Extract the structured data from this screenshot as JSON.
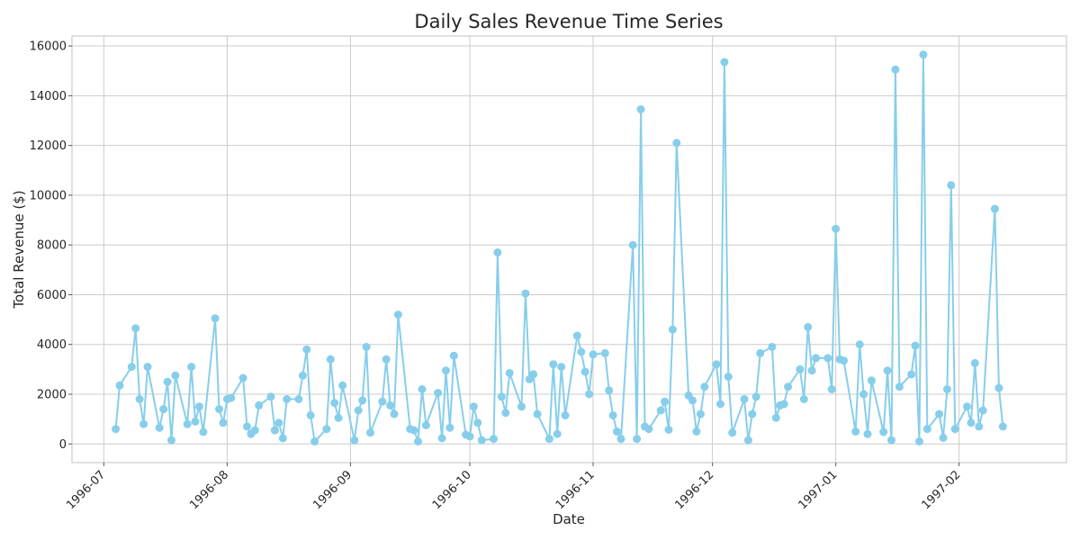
{
  "chart_data": {
    "type": "line",
    "title": "Daily Sales Revenue Time Series",
    "xlabel": "Date",
    "ylabel": "Total Revenue ($)",
    "x_tick_labels": [
      "1996-07",
      "1996-08",
      "1996-09",
      "1996-10",
      "1996-11",
      "1996-12",
      "1997-01",
      "1997-02"
    ],
    "y_tick_labels": [
      "0",
      "2000",
      "4000",
      "6000",
      "8000",
      "10000",
      "12000",
      "14000",
      "16000"
    ],
    "y_ticks": [
      0,
      2000,
      4000,
      6000,
      8000,
      10000,
      12000,
      14000,
      16000
    ],
    "xlim": [
      "1996-06-23",
      "1997-02-28"
    ],
    "ylim": [
      -750,
      16400
    ],
    "grid": true,
    "legend": "none",
    "series_color": "#87ceeb",
    "series": [
      {
        "x": [
          "1996-07-04",
          "1996-07-05",
          "1996-07-08",
          "1996-07-09",
          "1996-07-10",
          "1996-07-11",
          "1996-07-12",
          "1996-07-15",
          "1996-07-16",
          "1996-07-17",
          "1996-07-18",
          "1996-07-19",
          "1996-07-22",
          "1996-07-23",
          "1996-07-24",
          "1996-07-25",
          "1996-07-26",
          "1996-07-29",
          "1996-07-30",
          "1996-07-31",
          "1996-08-01",
          "1996-08-02",
          "1996-08-05",
          "1996-08-06",
          "1996-08-07",
          "1996-08-08",
          "1996-08-09",
          "1996-08-12",
          "1996-08-13",
          "1996-08-14",
          "1996-08-15",
          "1996-08-16",
          "1996-08-19",
          "1996-08-20",
          "1996-08-21",
          "1996-08-22",
          "1996-08-23",
          "1996-08-26",
          "1996-08-27",
          "1996-08-28",
          "1996-08-29",
          "1996-08-30",
          "1996-09-02",
          "1996-09-03",
          "1996-09-04",
          "1996-09-05",
          "1996-09-06",
          "1996-09-09",
          "1996-09-10",
          "1996-09-11",
          "1996-09-12",
          "1996-09-13",
          "1996-09-16",
          "1996-09-17",
          "1996-09-18",
          "1996-09-19",
          "1996-09-20",
          "1996-09-23",
          "1996-09-24",
          "1996-09-25",
          "1996-09-26",
          "1996-09-27",
          "1996-09-30",
          "1996-10-01",
          "1996-10-02",
          "1996-10-03",
          "1996-10-04",
          "1996-10-07",
          "1996-10-08",
          "1996-10-09",
          "1996-10-10",
          "1996-10-11",
          "1996-10-14",
          "1996-10-15",
          "1996-10-16",
          "1996-10-17",
          "1996-10-18",
          "1996-10-21",
          "1996-10-22",
          "1996-10-23",
          "1996-10-24",
          "1996-10-25",
          "1996-10-28",
          "1996-10-29",
          "1996-10-30",
          "1996-10-31",
          "1996-11-01",
          "1996-11-04",
          "1996-11-05",
          "1996-11-06",
          "1996-11-07",
          "1996-11-08",
          "1996-11-11",
          "1996-11-12",
          "1996-11-13",
          "1996-11-14",
          "1996-11-15",
          "1996-11-18",
          "1996-11-19",
          "1996-11-20",
          "1996-11-21",
          "1996-11-22",
          "1996-11-25",
          "1996-11-26",
          "1996-11-27",
          "1996-11-28",
          "1996-11-29",
          "1996-12-02",
          "1996-12-03",
          "1996-12-04",
          "1996-12-05",
          "1996-12-06",
          "1996-12-09",
          "1996-12-10",
          "1996-12-11",
          "1996-12-12",
          "1996-12-13",
          "1996-12-16",
          "1996-12-17",
          "1996-12-18",
          "1996-12-19",
          "1996-12-20",
          "1996-12-23",
          "1996-12-24",
          "1996-12-25",
          "1996-12-26",
          "1996-12-27",
          "1996-12-30",
          "1996-12-31",
          "1997-01-01",
          "1997-01-02",
          "1997-01-03",
          "1997-01-06",
          "1997-01-07",
          "1997-01-08",
          "1997-01-09",
          "1997-01-10",
          "1997-01-13",
          "1997-01-14",
          "1997-01-15",
          "1997-01-16",
          "1997-01-17",
          "1997-01-20",
          "1997-01-21",
          "1997-01-22",
          "1997-01-23",
          "1997-01-24",
          "1997-01-27",
          "1997-01-28",
          "1997-01-29",
          "1997-01-30",
          "1997-01-31",
          "1997-02-03",
          "1997-02-04",
          "1997-02-05",
          "1997-02-06",
          "1997-02-07",
          "1997-02-10",
          "1997-02-11",
          "1997-02-12"
        ],
        "y": [
          600,
          2350,
          3100,
          4650,
          1800,
          800,
          3100,
          650,
          1400,
          2500,
          150,
          2750,
          800,
          3100,
          900,
          1500,
          480,
          5050,
          1400,
          850,
          1800,
          1850,
          2650,
          700,
          400,
          550,
          1550,
          1900,
          550,
          850,
          230,
          1800,
          1800,
          2750,
          3800,
          1150,
          100,
          600,
          3400,
          1650,
          1050,
          2350,
          150,
          1350,
          1750,
          3900,
          450,
          1700,
          3400,
          1550,
          1200,
          5200,
          600,
          550,
          100,
          2200,
          750,
          2050,
          230,
          2950,
          650,
          3550,
          370,
          300,
          1500,
          850,
          150,
          200,
          7700,
          1900,
          1250,
          2850,
          1500,
          6050,
          2600,
          2800,
          1200,
          200,
          3200,
          400,
          3100,
          1150,
          4350,
          3700,
          2900,
          2000,
          3600,
          3650,
          2150,
          1150,
          500,
          200,
          8000,
          200,
          13450,
          700,
          600,
          1350,
          1700,
          570,
          4600,
          12100,
          1950,
          1750,
          500,
          1200,
          2300,
          3200,
          1600,
          15350,
          2700,
          450,
          1800,
          150,
          1200,
          1900,
          3650,
          3900,
          1050,
          1550,
          1600,
          2300,
          3000,
          1800,
          4700,
          2950,
          3450,
          3450,
          2200,
          8650,
          3400,
          3350,
          500,
          4000,
          2000,
          400,
          2550,
          480,
          2950,
          150,
          15050,
          2300,
          2800,
          3950,
          100,
          15650,
          600,
          1200,
          250,
          2200,
          10400,
          600,
          1500,
          850,
          3250,
          700,
          1350,
          9450,
          2250,
          700
        ]
      }
    ]
  }
}
